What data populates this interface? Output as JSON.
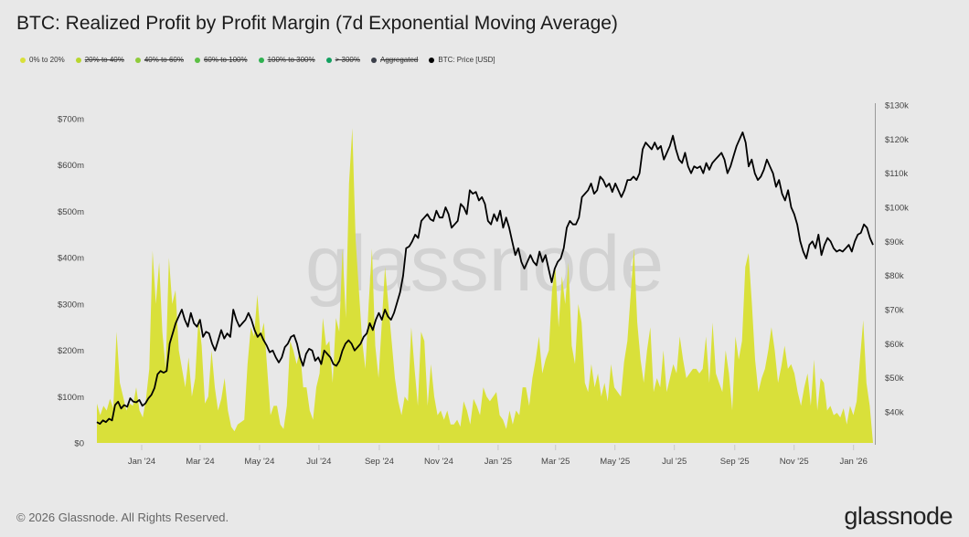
{
  "title": "BTC: Realized Profit by Profit Margin (7d Exponential Moving Average)",
  "legend": [
    {
      "label": "0% to 20%",
      "color": "#d9e03a",
      "active": true
    },
    {
      "label": "20% to 40%",
      "color": "#b8d62e",
      "active": false
    },
    {
      "label": "40% to 60%",
      "color": "#8fcb3a",
      "active": false
    },
    {
      "label": "60% to 100%",
      "color": "#5cbf45",
      "active": false
    },
    {
      "label": "100% to 300%",
      "color": "#2fb150",
      "active": false
    },
    {
      "label": "> 300%",
      "color": "#12a060",
      "active": false
    },
    {
      "label": "Aggregated",
      "color": "#3b3f4a",
      "active": false
    },
    {
      "label": "BTC: Price [USD]",
      "color": "#000000",
      "active": true
    }
  ],
  "watermark": "glassnode",
  "footer": {
    "copyright": "© 2026 Glassnode. All Rights Reserved.",
    "logo": "glassnode"
  },
  "chart_data": {
    "type": "area",
    "title": "BTC: Realized Profit by Profit Margin (7d Exponential Moving Average)",
    "xlabel": "",
    "ylabel": "",
    "x_range": [
      "2023-11-16",
      "2026-01-21"
    ],
    "x_ticks": [
      "Jan '24",
      "Mar '24",
      "May '24",
      "Jul '24",
      "Sep '24",
      "Nov '24",
      "Jan '25",
      "Mar '25",
      "May '25",
      "Jul '25",
      "Sep '25",
      "Nov '25",
      "Jan '26"
    ],
    "y_left": {
      "ticks": [
        "$0",
        "$100m",
        "$200m",
        "$300m",
        "$400m",
        "$500m",
        "$600m",
        "$700m"
      ],
      "range": [
        0,
        700
      ],
      "unit": "m USD"
    },
    "y_right": {
      "ticks": [
        "$40k",
        "$50k",
        "$60k",
        "$70k",
        "$80k",
        "$90k",
        "$100k",
        "$110k",
        "$120k",
        "$130k"
      ],
      "range": [
        31,
        130
      ],
      "unit": "k USD"
    },
    "grid": false,
    "legend_position": "top-left",
    "series": [
      {
        "name": "0% to 20%",
        "axis": "left",
        "type": "area",
        "color": "#d9e03a",
        "values": [
          85,
          60,
          80,
          70,
          95,
          75,
          240,
          130,
          100,
          70,
          85,
          80,
          120,
          70,
          55,
          95,
          160,
          415,
          300,
          390,
          240,
          160,
          400,
          300,
          330,
          200,
          160,
          120,
          185,
          100,
          140,
          270,
          210,
          85,
          100,
          200,
          120,
          70,
          95,
          140,
          70,
          35,
          25,
          40,
          45,
          50,
          170,
          250,
          230,
          320,
          230,
          260,
          160,
          60,
          80,
          80,
          40,
          30,
          80,
          220,
          200,
          170,
          200,
          120,
          120,
          70,
          50,
          120,
          150,
          270,
          210,
          220,
          130,
          270,
          240,
          420,
          270,
          560,
          680,
          440,
          330,
          220,
          160,
          300,
          420,
          210,
          140,
          260,
          380,
          300,
          220,
          140,
          90,
          60,
          100,
          90,
          250,
          160,
          80,
          240,
          220,
          80,
          170,
          100,
          60,
          70,
          50,
          70,
          40,
          40,
          50,
          35,
          90,
          70,
          40,
          95,
          80,
          60,
          120,
          100,
          90,
          100,
          110,
          60,
          50,
          30,
          70,
          40,
          70,
          60,
          120,
          120,
          80,
          140,
          180,
          230,
          150,
          180,
          200,
          330,
          380,
          250,
          360,
          300,
          390,
          210,
          170,
          300,
          260,
          130,
          110,
          170,
          120,
          150,
          100,
          130,
          90,
          170,
          120,
          110,
          100,
          175,
          220,
          320,
          420,
          260,
          180,
          130,
          200,
          250,
          110,
          140,
          120,
          200,
          110,
          140,
          170,
          150,
          230,
          180,
          140,
          150,
          160,
          160,
          150,
          160,
          230,
          130,
          260,
          150,
          130,
          110,
          200,
          150,
          70,
          230,
          180,
          220,
          380,
          410,
          300,
          180,
          110,
          140,
          160,
          200,
          250,
          200,
          130,
          165,
          210,
          160,
          170,
          150,
          110,
          80,
          120,
          150,
          80,
          180,
          70,
          140,
          130,
          70,
          80,
          60,
          65,
          55,
          75,
          40,
          80,
          60,
          90,
          180,
          265,
          130,
          80,
          0
        ]
      },
      {
        "name": "BTC: Price [USD]",
        "axis": "right",
        "type": "line",
        "color": "#000000",
        "values": [
          37,
          36.5,
          37.5,
          37,
          38,
          37.5,
          42,
          43,
          41,
          42,
          41.5,
          44,
          43,
          42.8,
          43.5,
          41.8,
          42.5,
          44,
          45,
          47,
          51,
          52,
          51.5,
          52,
          60,
          63,
          66,
          68,
          70,
          67,
          65,
          69,
          66,
          65,
          67,
          62,
          63.5,
          63,
          60,
          58,
          61,
          64,
          61.5,
          63,
          62,
          70,
          67,
          65,
          66,
          67,
          69,
          67,
          64,
          62,
          63,
          61,
          59.5,
          57.5,
          58,
          56,
          54.5,
          56,
          59,
          60,
          62,
          62.5,
          60,
          56,
          53.5,
          57,
          58.5,
          58,
          55,
          56,
          54,
          58,
          57,
          56,
          54,
          53.5,
          55,
          58,
          60,
          61,
          60,
          58,
          59,
          60,
          62,
          63,
          66,
          64,
          67,
          69,
          67,
          70,
          68,
          67,
          69,
          72,
          75,
          80,
          88,
          88.5,
          90,
          92,
          91,
          96,
          97,
          98,
          96.5,
          96,
          99,
          97,
          97,
          100,
          98,
          94,
          95,
          96,
          101,
          100,
          98,
          105,
          104,
          104.5,
          102,
          103,
          101,
          96,
          95,
          98,
          96,
          99,
          94,
          97,
          94,
          90,
          86,
          88,
          84,
          82,
          84,
          86,
          84,
          83,
          87,
          84,
          86,
          82,
          78,
          82,
          84,
          85,
          88,
          94,
          96,
          95,
          95,
          97,
          103,
          104,
          105,
          107,
          104,
          105,
          109,
          108,
          106,
          107,
          104.5,
          107,
          105,
          103,
          105,
          108,
          108,
          109,
          108,
          110,
          117,
          119,
          118,
          117,
          119,
          117,
          118,
          114,
          116,
          118,
          121,
          117,
          114,
          113,
          116,
          112,
          110,
          112,
          111.5,
          112,
          110,
          113,
          111,
          113,
          114,
          115,
          116,
          114,
          110,
          112,
          115,
          118,
          120,
          122,
          119,
          112,
          114,
          110,
          108,
          109,
          111,
          114,
          112,
          110,
          106,
          108,
          104,
          102,
          105,
          100,
          98,
          95,
          90,
          87,
          85,
          89,
          90,
          88,
          92,
          86,
          89,
          91,
          90,
          88,
          87,
          87.5,
          87,
          88,
          89,
          87,
          90,
          92,
          92.5,
          95,
          94,
          91,
          89
        ]
      }
    ]
  }
}
